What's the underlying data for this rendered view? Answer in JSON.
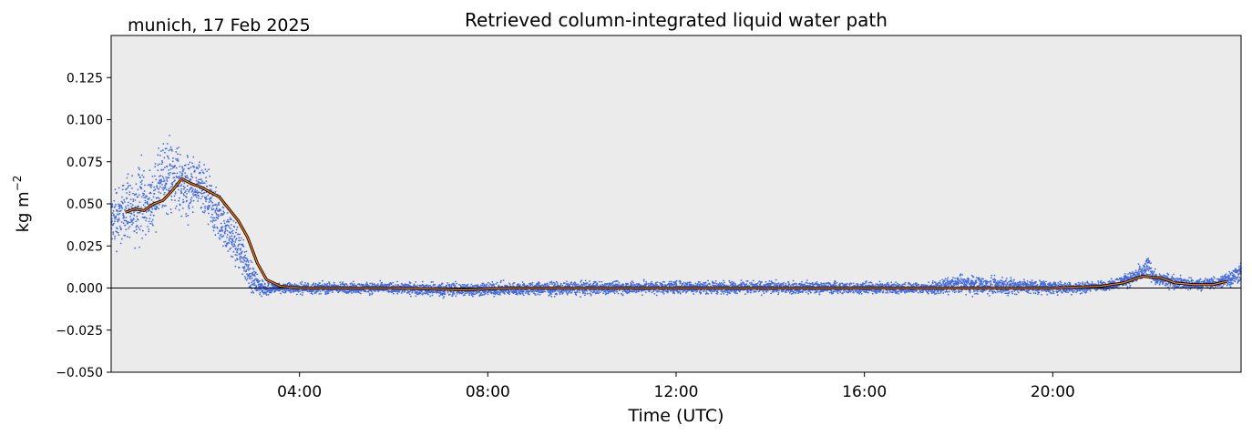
{
  "chart_data": {
    "type": "scatter",
    "title": "Retrieved column-integrated liquid water path",
    "subtitle": "munich, 17 Feb 2025",
    "xlabel": "Time (UTC)",
    "ylabel": "kg m",
    "ylabel_superscript": "−2",
    "xlim_hours": [
      0,
      24
    ],
    "ylim": [
      -0.05,
      0.15
    ],
    "x_ticks": [
      {
        "hour": 4,
        "label": "04:00"
      },
      {
        "hour": 8,
        "label": "08:00"
      },
      {
        "hour": 12,
        "label": "12:00"
      },
      {
        "hour": 16,
        "label": "16:00"
      },
      {
        "hour": 20,
        "label": "20:00"
      }
    ],
    "y_ticks": [
      {
        "value": -0.05,
        "label": "−0.050"
      },
      {
        "value": -0.025,
        "label": "−0.025"
      },
      {
        "value": 0.0,
        "label": "0.000"
      },
      {
        "value": 0.025,
        "label": "0.025"
      },
      {
        "value": 0.05,
        "label": "0.050"
      },
      {
        "value": 0.075,
        "label": "0.075"
      },
      {
        "value": 0.1,
        "label": "0.100"
      },
      {
        "value": 0.125,
        "label": "0.125"
      }
    ],
    "zero_line": true,
    "grid": false,
    "background_color": "#ebebeb",
    "series": [
      {
        "kind": "scatter",
        "color": "#4169e1",
        "envelope": [
          {
            "hour": 0.0,
            "low": 0.02,
            "high": 0.055
          },
          {
            "hour": 0.1,
            "low": 0.018,
            "high": 0.07
          },
          {
            "hour": 0.2,
            "low": 0.022,
            "high": 0.062
          },
          {
            "hour": 0.35,
            "low": 0.025,
            "high": 0.077
          },
          {
            "hour": 0.5,
            "low": 0.02,
            "high": 0.06
          },
          {
            "hour": 0.6,
            "low": 0.025,
            "high": 0.09
          },
          {
            "hour": 0.75,
            "low": 0.03,
            "high": 0.065
          },
          {
            "hour": 0.9,
            "low": 0.03,
            "high": 0.075
          },
          {
            "hour": 1.0,
            "low": 0.035,
            "high": 0.085
          },
          {
            "hour": 1.2,
            "low": 0.038,
            "high": 0.098
          },
          {
            "hour": 1.4,
            "low": 0.04,
            "high": 0.09
          },
          {
            "hour": 1.6,
            "low": 0.035,
            "high": 0.085
          },
          {
            "hour": 1.8,
            "low": 0.04,
            "high": 0.08
          },
          {
            "hour": 2.0,
            "low": 0.035,
            "high": 0.075
          },
          {
            "hour": 2.2,
            "low": 0.025,
            "high": 0.065
          },
          {
            "hour": 2.4,
            "low": 0.02,
            "high": 0.055
          },
          {
            "hour": 2.6,
            "low": 0.012,
            "high": 0.045
          },
          {
            "hour": 2.8,
            "low": 0.003,
            "high": 0.035
          },
          {
            "hour": 3.0,
            "low": -0.004,
            "high": 0.015
          },
          {
            "hour": 3.2,
            "low": -0.006,
            "high": 0.005
          },
          {
            "hour": 3.5,
            "low": -0.004,
            "high": 0.004
          },
          {
            "hour": 6.0,
            "low": -0.004,
            "high": 0.004
          },
          {
            "hour": 7.0,
            "low": -0.006,
            "high": 0.004
          },
          {
            "hour": 12.0,
            "low": -0.004,
            "high": 0.005
          },
          {
            "hour": 17.5,
            "low": -0.004,
            "high": 0.004
          },
          {
            "hour": 18.0,
            "low": -0.005,
            "high": 0.009
          },
          {
            "hour": 20.5,
            "low": -0.004,
            "high": 0.004
          },
          {
            "hour": 21.2,
            "low": -0.002,
            "high": 0.005
          },
          {
            "hour": 21.6,
            "low": 0.0,
            "high": 0.01
          },
          {
            "hour": 21.9,
            "low": 0.002,
            "high": 0.015
          },
          {
            "hour": 22.0,
            "low": 0.004,
            "high": 0.021
          },
          {
            "hour": 22.2,
            "low": 0.001,
            "high": 0.01
          },
          {
            "hour": 22.5,
            "low": -0.001,
            "high": 0.009
          },
          {
            "hour": 23.0,
            "low": -0.002,
            "high": 0.006
          },
          {
            "hour": 23.5,
            "low": -0.001,
            "high": 0.007
          },
          {
            "hour": 23.85,
            "low": 0.0,
            "high": 0.014
          },
          {
            "hour": 24.0,
            "low": 0.003,
            "high": 0.017
          }
        ]
      },
      {
        "kind": "line",
        "color": "#ff7f0e",
        "outline_color": "#000000",
        "points": [
          {
            "hour": 0.3,
            "value": 0.045
          },
          {
            "hour": 0.5,
            "value": 0.047
          },
          {
            "hour": 0.7,
            "value": 0.046
          },
          {
            "hour": 0.9,
            "value": 0.05
          },
          {
            "hour": 1.1,
            "value": 0.052
          },
          {
            "hour": 1.3,
            "value": 0.058
          },
          {
            "hour": 1.5,
            "value": 0.065
          },
          {
            "hour": 1.7,
            "value": 0.062
          },
          {
            "hour": 1.9,
            "value": 0.06
          },
          {
            "hour": 2.1,
            "value": 0.057
          },
          {
            "hour": 2.3,
            "value": 0.054
          },
          {
            "hour": 2.5,
            "value": 0.047
          },
          {
            "hour": 2.7,
            "value": 0.04
          },
          {
            "hour": 2.9,
            "value": 0.03
          },
          {
            "hour": 3.1,
            "value": 0.015
          },
          {
            "hour": 3.3,
            "value": 0.005
          },
          {
            "hour": 3.6,
            "value": 0.001
          },
          {
            "hour": 4.0,
            "value": 0.0
          },
          {
            "hour": 6.0,
            "value": 0.0
          },
          {
            "hour": 7.5,
            "value": -0.001
          },
          {
            "hour": 8.5,
            "value": 0.0
          },
          {
            "hour": 12.0,
            "value": 0.0
          },
          {
            "hour": 16.0,
            "value": 0.0
          },
          {
            "hour": 18.0,
            "value": 0.0
          },
          {
            "hour": 20.0,
            "value": 0.0
          },
          {
            "hour": 21.0,
            "value": 0.001
          },
          {
            "hour": 21.5,
            "value": 0.003
          },
          {
            "hour": 21.9,
            "value": 0.007
          },
          {
            "hour": 22.3,
            "value": 0.006
          },
          {
            "hour": 22.6,
            "value": 0.003
          },
          {
            "hour": 23.0,
            "value": 0.002
          },
          {
            "hour": 23.4,
            "value": 0.002
          },
          {
            "hour": 23.7,
            "value": 0.004
          }
        ]
      }
    ]
  }
}
